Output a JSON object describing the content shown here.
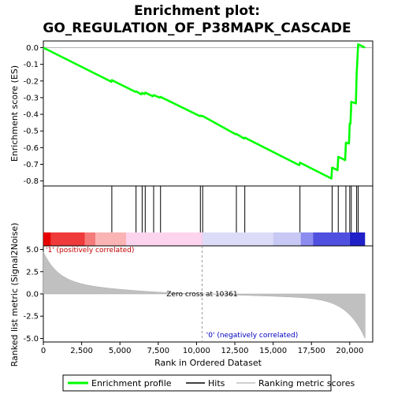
{
  "chart_data": {
    "type": "line",
    "title_line1": "Enrichment plot:",
    "title_line2": "GO_REGULATION_OF_P38MAPK_CASCADE",
    "x_label": "Rank in Ordered Dataset",
    "xlim": [
      0,
      21500
    ],
    "x_ticks": [
      0,
      2500,
      5000,
      7500,
      10000,
      12500,
      15000,
      17500,
      20000
    ],
    "x_tick_labels": [
      "0",
      "2,500",
      "5,000",
      "7,500",
      "10,000",
      "12,500",
      "15,000",
      "17,500",
      "20,000"
    ],
    "es_panel": {
      "ylabel": "Enrichment score (ES)",
      "ylim": [
        -0.83,
        0.04
      ],
      "y_ticks": [
        0.0,
        -0.1,
        -0.2,
        -0.3,
        -0.4,
        -0.5,
        -0.6,
        -0.7,
        -0.8
      ],
      "y_tick_labels": [
        "0.0",
        "-0.1",
        "-0.2",
        "-0.3",
        "-0.4",
        "-0.5",
        "-0.6",
        "-0.7",
        "-0.8"
      ],
      "series_name": "Enrichment profile",
      "color": "#00ff00",
      "points": [
        [
          0,
          0.0
        ],
        [
          4450,
          -0.205
        ],
        [
          4470,
          -0.195
        ],
        [
          6000,
          -0.265
        ],
        [
          6050,
          -0.262
        ],
        [
          6400,
          -0.28
        ],
        [
          6450,
          -0.272
        ],
        [
          6600,
          -0.278
        ],
        [
          6650,
          -0.27
        ],
        [
          7150,
          -0.292
        ],
        [
          7200,
          -0.285
        ],
        [
          7600,
          -0.3
        ],
        [
          7650,
          -0.295
        ],
        [
          10200,
          -0.41
        ],
        [
          10250,
          -0.408
        ],
        [
          10350,
          -0.412
        ],
        [
          10400,
          -0.41
        ],
        [
          12550,
          -0.52
        ],
        [
          12600,
          -0.518
        ],
        [
          13100,
          -0.545
        ],
        [
          13150,
          -0.54
        ],
        [
          16700,
          -0.705
        ],
        [
          16750,
          -0.69
        ],
        [
          18800,
          -0.785
        ],
        [
          18850,
          -0.72
        ],
        [
          19200,
          -0.735
        ],
        [
          19250,
          -0.655
        ],
        [
          19700,
          -0.675
        ],
        [
          19750,
          -0.57
        ],
        [
          19950,
          -0.575
        ],
        [
          20000,
          -0.455
        ],
        [
          20050,
          -0.455
        ],
        [
          20100,
          -0.325
        ],
        [
          20400,
          -0.335
        ],
        [
          20450,
          -0.16
        ],
        [
          20550,
          0.02
        ],
        [
          21000,
          0.0
        ]
      ]
    },
    "hits": {
      "name": "Hits",
      "positions": [
        4470,
        6050,
        6450,
        6650,
        7200,
        7650,
        10250,
        10400,
        12600,
        13150,
        16750,
        18850,
        19250,
        19750,
        20000,
        20100,
        20450,
        20550
      ]
    },
    "heatbar": {
      "colors": [
        "#e60000",
        "#ee3a3a",
        "#f57a7a",
        "#fbb4b4",
        "#fdd4ee",
        "#f8c8f0",
        "#dcdcf8",
        "#c8c8f4",
        "#8c8cf0",
        "#5050e0",
        "#2020c8"
      ],
      "breaks": [
        0,
        500,
        2700,
        3400,
        5400,
        10300,
        10400,
        15000,
        16800,
        17600,
        20000,
        21000
      ]
    },
    "metric_panel": {
      "ylabel": "Ranked list metric (Signal2Noise)",
      "ylim": [
        -5.4,
        5.4
      ],
      "y_ticks": [
        5.0,
        2.5,
        0.0,
        -2.5,
        -5.0
      ],
      "y_tick_labels": [
        "5.0",
        "2.5",
        "0.0",
        "-2.5",
        "-5.0"
      ],
      "series_name": "Ranking metric scores",
      "color": "#c0c0c0",
      "positive_label": "'1' (positively correlated)",
      "negative_label": "'0' (negatively correlated)",
      "zero_cross_label": "Zero cross at 10361",
      "zero_cross": 10361,
      "n_total": 21000,
      "start_value": 4.5,
      "end_value": -5.0
    }
  }
}
